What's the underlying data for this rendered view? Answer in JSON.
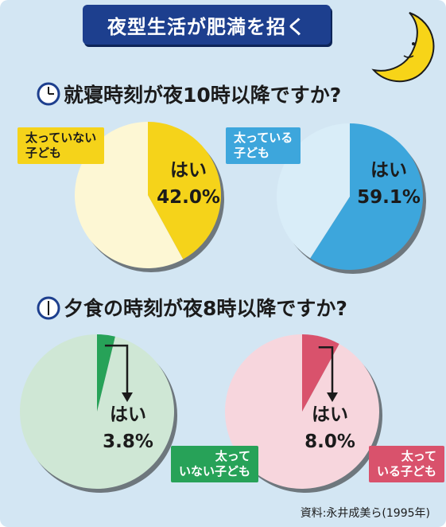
{
  "title": "夜型生活が肥満を招く",
  "source": "資料:永井成美ら(1995年)",
  "colors": {
    "background": "#d3e6f3",
    "title_bar": "#1d3f8e",
    "yellow": "#f5d31a",
    "yellow_light": "#fdf7d4",
    "blue": "#3da6dc",
    "blue_light": "#d9edf8",
    "green": "#27a258",
    "green_light": "#cfe7d5",
    "pink": "#d9526c",
    "pink_light": "#f7d6dd"
  },
  "icons": [
    "crescent-moon-icon",
    "clock-icon"
  ],
  "chart_data": [
    {
      "type": "pie",
      "title": "就寝時刻が夜10時以降ですか?",
      "group_label": "太っていない子ども",
      "slices": [
        {
          "label": "はい",
          "value": 42.0,
          "display": "42.0%"
        },
        {
          "label": "",
          "value": 58.0
        }
      ]
    },
    {
      "type": "pie",
      "title": "就寝時刻が夜10時以降ですか?",
      "group_label": "太っている子ども",
      "slices": [
        {
          "label": "はい",
          "value": 59.1,
          "display": "59.1%"
        },
        {
          "label": "",
          "value": 40.9
        }
      ]
    },
    {
      "type": "pie",
      "title": "夕食の時刻が夜8時以降ですか?",
      "group_label": "太っていない子ども",
      "slices": [
        {
          "label": "はい",
          "value": 3.8,
          "display": "3.8%"
        },
        {
          "label": "",
          "value": 96.2
        }
      ]
    },
    {
      "type": "pie",
      "title": "夕食の時刻が夜8時以降ですか?",
      "group_label": "太っている子ども",
      "slices": [
        {
          "label": "はい",
          "value": 8.0,
          "display": "8.0%"
        },
        {
          "label": "",
          "value": 92.0
        }
      ]
    }
  ],
  "texts": {
    "q1": "就寝時刻が夜10時以降ですか?",
    "q2": "夕食の時刻が夜8時以降ですか?",
    "lb1_line1": "太っていない",
    "lb1_line2": "子ども",
    "lb2_line1": "太っている",
    "lb2_line2": "子ども",
    "lb3_line1": "太って",
    "lb3_line2": "いない子ども",
    "lb4_line1": "太って",
    "lb4_line2": "いる子ども",
    "yes": "はい",
    "p1": "42.0%",
    "p2": "59.1%",
    "p3": "3.8%",
    "p4": "8.0%"
  }
}
